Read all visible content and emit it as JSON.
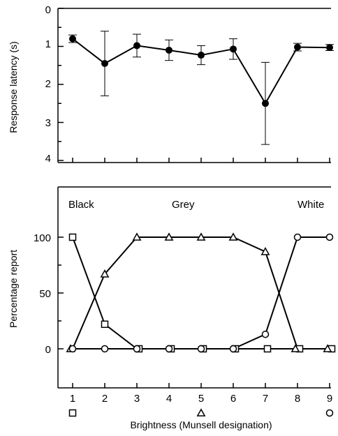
{
  "chart_data": [
    {
      "type": "line",
      "ylabel": "Response latency (s)",
      "ylim": [
        0,
        4.2
      ],
      "y_inverted": true,
      "yticks": [
        "0",
        "1",
        "2",
        "3",
        "4"
      ],
      "x": [
        1,
        2,
        3,
        4,
        5,
        6,
        7,
        8,
        9
      ],
      "series": [
        {
          "values": [
            0.8,
            1.45,
            0.98,
            1.1,
            1.23,
            1.07,
            2.5,
            1.02,
            1.03
          ],
          "error": [
            0.1,
            0.85,
            0.3,
            0.27,
            0.25,
            0.27,
            1.08,
            0.1,
            0.08
          ],
          "marker": "filled-circle"
        }
      ]
    },
    {
      "type": "line",
      "xlabel": "Brightness (Munsell designation)",
      "ylabel": "Percentage report",
      "ylim": [
        -8,
        118
      ],
      "yticks": [
        "0",
        "50",
        "100"
      ],
      "xticks": [
        "1",
        "2",
        "3",
        "4",
        "5",
        "6",
        "7",
        "8",
        "9"
      ],
      "x": [
        1,
        2,
        3,
        4,
        5,
        6,
        7,
        8,
        9
      ],
      "annotations": [
        "Black",
        "Grey",
        "White"
      ],
      "series": [
        {
          "label": "Black",
          "marker": "square",
          "values": [
            100,
            22,
            0,
            0,
            0,
            0,
            0,
            0,
            0
          ]
        },
        {
          "label": "Grey",
          "marker": "triangle",
          "values": [
            0,
            67,
            100,
            100,
            100,
            100,
            87,
            0,
            0
          ]
        },
        {
          "label": "White",
          "marker": "circle",
          "values": [
            0,
            0,
            0,
            0,
            0,
            0,
            13,
            100,
            100
          ]
        }
      ],
      "below_axis_markers": [
        {
          "x": 1,
          "marker": "square"
        },
        {
          "x": 5,
          "marker": "triangle"
        },
        {
          "x": 9,
          "marker": "circle"
        }
      ]
    }
  ]
}
